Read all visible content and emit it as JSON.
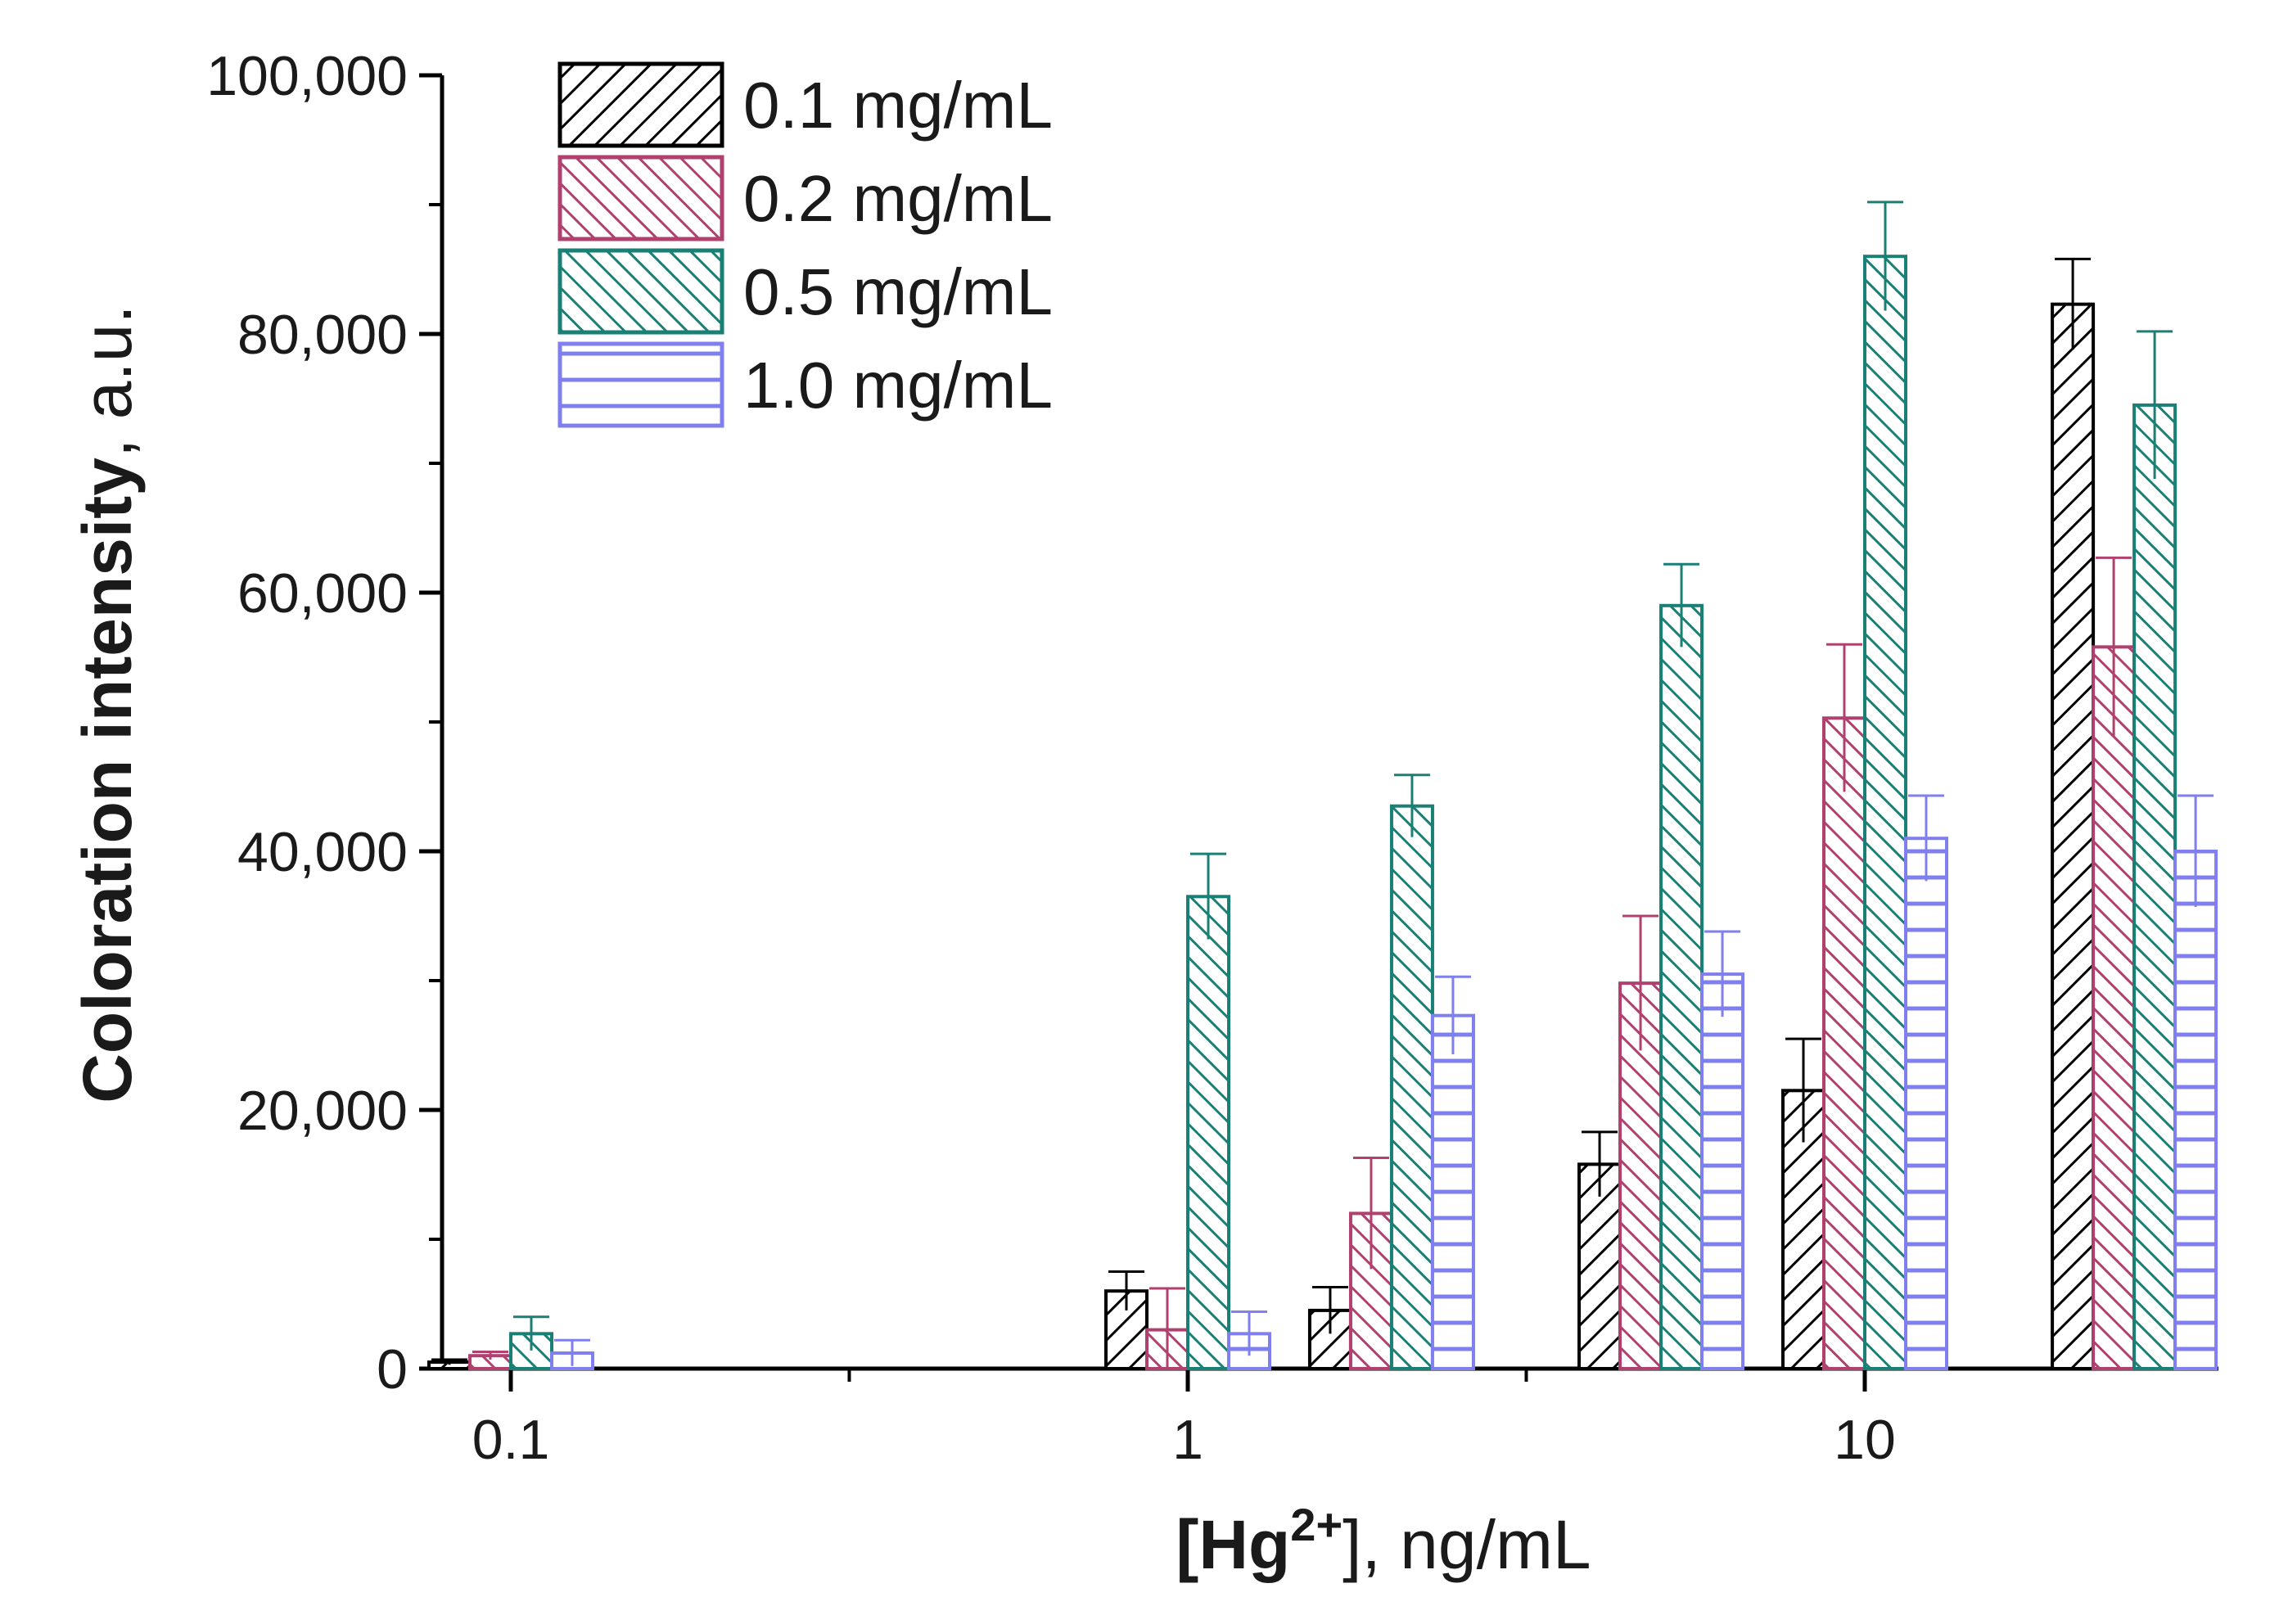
{
  "chart_data": {
    "type": "bar",
    "title": "",
    "xlabel_main": "[Hg",
    "xlabel_superscript": "2+",
    "xlabel_suffix": "], ng/mL",
    "ylabel_bold": "Coloration intensity",
    "ylabel_suffix": ", a.u.",
    "x_scale": "log",
    "x_ticks": [
      "0.1",
      "1",
      "10"
    ],
    "y_ticks": [
      "0",
      "20,000",
      "40,000",
      "60,000",
      "80,000",
      "100,000"
    ],
    "ylim": [
      0,
      100000
    ],
    "categories": [
      0.1,
      1,
      2,
      5,
      10,
      25
    ],
    "series": [
      {
        "name": "0.1 mg/mL",
        "color": "#000000",
        "pattern": "diag-right",
        "values": [
          500,
          6000,
          4500,
          15800,
          21500,
          82300
        ],
        "errors": [
          200,
          1500,
          1800,
          2500,
          4000,
          3500
        ]
      },
      {
        "name": "0.2 mg/mL",
        "color": "#b0406e",
        "pattern": "diag-left",
        "values": [
          1000,
          3000,
          12000,
          29800,
          50300,
          55800
        ],
        "errors": [
          300,
          3200,
          4300,
          5200,
          5700,
          6900
        ]
      },
      {
        "name": "0.5 mg/mL",
        "color": "#1a7f74",
        "pattern": "diag-left",
        "values": [
          2700,
          36500,
          43500,
          59000,
          86000,
          74500
        ],
        "errors": [
          1300,
          3300,
          2400,
          3200,
          4200,
          5700
        ]
      },
      {
        "name": "1.0 mg/mL",
        "color": "#7f7fef",
        "pattern": "horizontal",
        "values": [
          1200,
          2700,
          27300,
          30500,
          41000,
          40000
        ],
        "errors": [
          1000,
          1700,
          3000,
          3300,
          3300,
          4300
        ]
      }
    ],
    "legend_position": "top-left"
  }
}
